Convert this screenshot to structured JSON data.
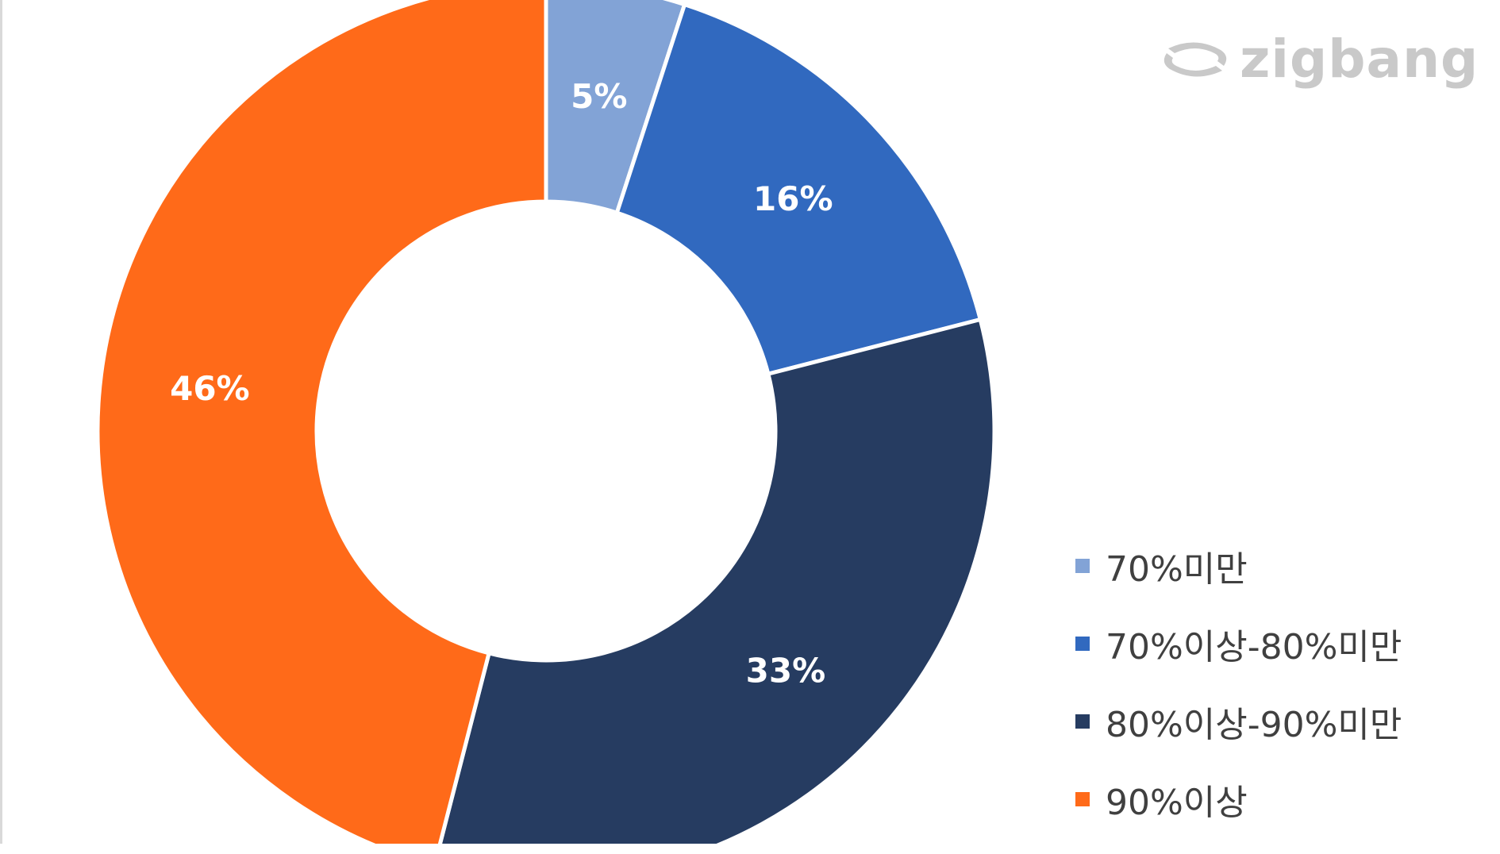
{
  "chart_data": {
    "type": "pie",
    "donut": true,
    "start_angle_deg": 0,
    "direction": "clockwise",
    "slices": [
      {
        "label": "70%미만",
        "value": 5,
        "display": "5%",
        "color": "#82a3d6"
      },
      {
        "label": "70%이상-80%미만",
        "value": 16,
        "display": "16%",
        "color": "#3169bf"
      },
      {
        "label": "80%이상-90%미만",
        "value": 33,
        "display": "33%",
        "color": "#263c61"
      },
      {
        "label": "90%이상",
        "value": 46,
        "display": "46%",
        "color": "#ff6a19"
      }
    ],
    "legend_position": "bottom-right"
  },
  "watermark": {
    "text": "zigbang"
  }
}
